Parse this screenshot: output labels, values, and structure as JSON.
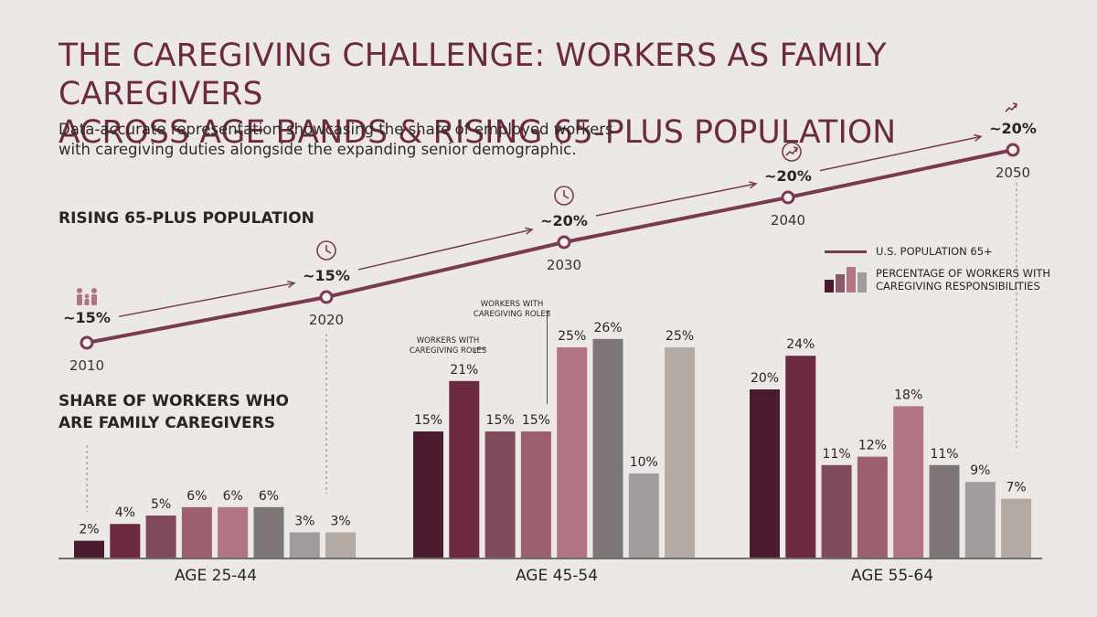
{
  "header": {
    "title_line1": "THE CAREGIVING CHALLENGE: WORKERS AS FAMILY CAREGIVERS",
    "title_line2": "ACROSS AGE BANDS & RISING 65-PLUS POPULATION",
    "subtitle": "Data-accurate representation showcasing the share of employed workers with caregiving duties alongside the expanding senior demographic."
  },
  "sections": {
    "population_label": "RISING 65-PLUS POPULATION",
    "workers_label_line1": "SHARE OF WORKERS WHO",
    "workers_label_line2": "ARE FAMILY CAREGIVERS"
  },
  "legend": {
    "line_label": "U.S. POPULATION 65+",
    "bars_label_line1": "PERCENTAGE OF WORKERS WITH",
    "bars_label_line2": "CAREGIVING RESPONSIBILITIES"
  },
  "colors": {
    "title": "#6b2a40",
    "line": "#7a3a52",
    "bar_palette": [
      "#4a1a2e",
      "#6b2a40",
      "#7e4a5c",
      "#9c6070",
      "#b07482",
      "#7d7577",
      "#a29b9d",
      "#b3aaa4"
    ]
  },
  "icons": {
    "2010": "family-icon",
    "2020": "clock-icon",
    "2030": "clock-icon",
    "2040": "trend-up-icon",
    "2050": "trend-arrow-icon"
  },
  "chart_data": [
    {
      "type": "line",
      "x": [
        "2010",
        "2020",
        "2030",
        "2040",
        "2050"
      ],
      "series": [
        {
          "name": "U.S. POPULATION 65+",
          "values": [
            15,
            15,
            20,
            20,
            20
          ],
          "labels": [
            "~15%",
            "~15%",
            "~20%",
            "~20%",
            "~20%"
          ]
        }
      ]
    },
    {
      "type": "bar",
      "categories": [
        "AGE 25-44",
        "AGE 45-54",
        "AGE 55-64"
      ],
      "series_name": "PERCENTAGE OF WORKERS WITH CAREGIVING RESPONSIBILITIES",
      "groups": [
        {
          "category": "AGE 25-44",
          "values": [
            2,
            4,
            5,
            6,
            6,
            6,
            3,
            3
          ]
        },
        {
          "category": "AGE 45-54",
          "values": [
            15,
            21,
            15,
            15,
            25,
            26,
            10,
            25
          ]
        },
        {
          "category": "AGE 55-64",
          "values": [
            20,
            24,
            11,
            12,
            18,
            11,
            9,
            7
          ]
        }
      ],
      "annotations": [
        {
          "group": 1,
          "bar": 1,
          "text_line1": "WORKERS WITH",
          "text_line2": "CAREGIVING ROLES"
        },
        {
          "group": 1,
          "bar": 3,
          "text_line1": "WORKERS WITH",
          "text_line2": "CAREGIVING ROLES"
        }
      ]
    }
  ]
}
